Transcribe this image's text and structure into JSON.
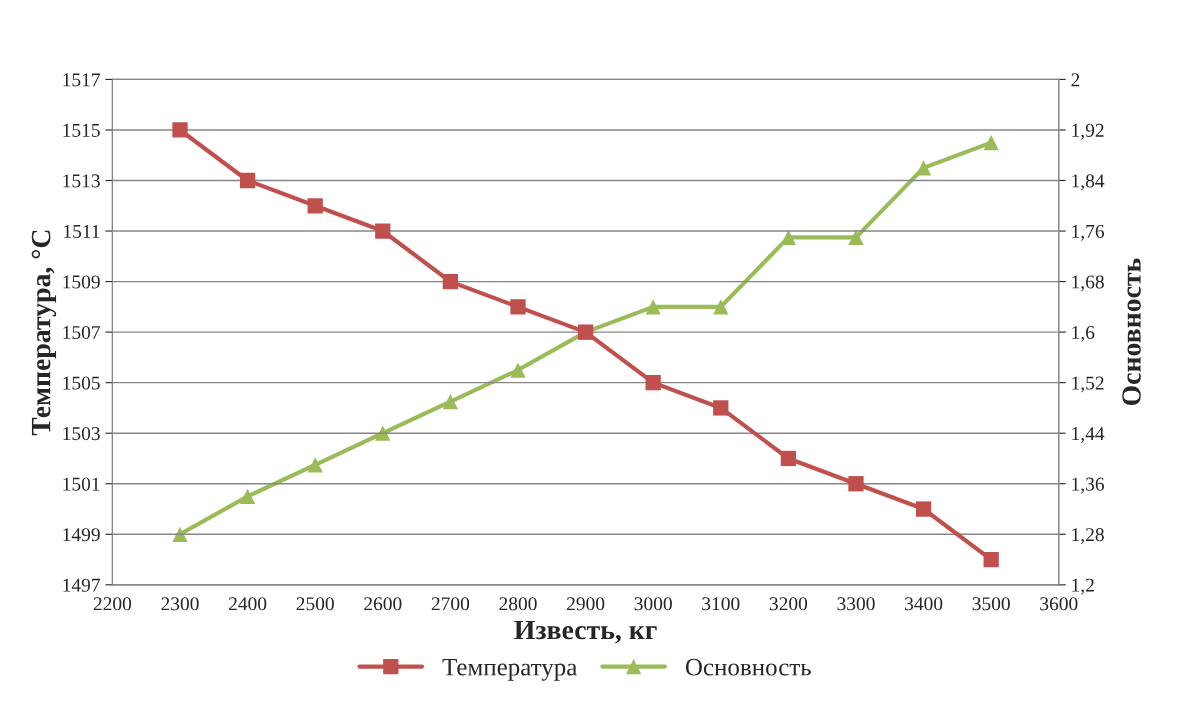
{
  "chart_data": {
    "type": "line",
    "xlabel": "Известь, кг",
    "ylabel": "Температура, °C",
    "y2label": "Основность",
    "x": [
      2300,
      2400,
      2500,
      2600,
      2700,
      2800,
      2900,
      3000,
      3100,
      3200,
      3300,
      3400,
      3500
    ],
    "series": [
      {
        "name": "Температура",
        "color": "#c0504d",
        "marker": "square",
        "values": [
          1515,
          1513,
          1512,
          1511,
          1509,
          1508,
          1507,
          1505,
          1504,
          1502,
          1501,
          1500,
          1498
        ]
      },
      {
        "name": "Основность",
        "color": "#9bbb59",
        "marker": "triangle",
        "axis": "y2",
        "values": [
          1.28,
          1.34,
          1.39,
          1.44,
          1.49,
          1.54,
          1.6,
          1.64,
          1.64,
          1.75,
          1.75,
          1.86,
          1.9
        ]
      }
    ],
    "xlim": [
      2200,
      3600
    ],
    "xticks": [
      2200,
      2300,
      2400,
      2500,
      2600,
      2700,
      2800,
      2900,
      3000,
      3100,
      3200,
      3300,
      3400,
      3500,
      3600
    ],
    "ylim": [
      1497,
      1517
    ],
    "yticks": [
      1497,
      1499,
      1501,
      1503,
      1505,
      1507,
      1509,
      1511,
      1513,
      1515,
      1517
    ],
    "y2lim": [
      1.2,
      2
    ],
    "y2ticks": [
      {
        "value": 1.2,
        "label": "1,2"
      },
      {
        "value": 1.28,
        "label": "1,28"
      },
      {
        "value": 1.36,
        "label": "1,36"
      },
      {
        "value": 1.44,
        "label": "1,44"
      },
      {
        "value": 1.52,
        "label": "1,52"
      },
      {
        "value": 1.6,
        "label": "1,6"
      },
      {
        "value": 1.68,
        "label": "1,68"
      },
      {
        "value": 1.76,
        "label": "1,76"
      },
      {
        "value": 1.84,
        "label": "1,84"
      },
      {
        "value": 1.92,
        "label": "1,92"
      },
      {
        "value": 2,
        "label": "2"
      }
    ],
    "grid": "y",
    "legend": "bottom",
    "line_style": "solid"
  }
}
